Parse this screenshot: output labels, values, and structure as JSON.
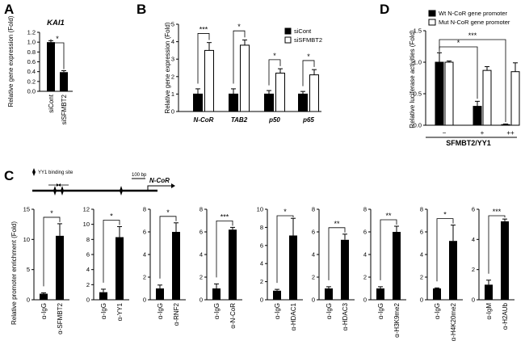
{
  "panels": {
    "A": "A",
    "B": "B",
    "C": "C",
    "D": "D"
  },
  "chart_data": [
    {
      "id": "A",
      "type": "bar",
      "title": "KAI1",
      "ylabel": "Relative gene expression (Fold)",
      "categories": [
        "siCont",
        "siSFMBT2"
      ],
      "values": [
        1.0,
        0.39
      ],
      "errors": [
        0.03,
        0.03
      ],
      "ylim": [
        0,
        1.2
      ],
      "yticks": [
        "0.0",
        "0.2",
        "0.4",
        "0.6",
        "0.8",
        "1.0",
        "1.2"
      ],
      "significance": [
        {
          "between": [
            0,
            1
          ],
          "label": "*"
        }
      ]
    },
    {
      "id": "B",
      "type": "bar",
      "ylabel": "Relative gene expression (Fold)",
      "categories": [
        "N-CoR",
        "TAB2",
        "p50",
        "p65"
      ],
      "series": [
        {
          "name": "siCont",
          "values": [
            1.0,
            1.0,
            1.0,
            1.0
          ],
          "errors": [
            0.3,
            0.3,
            0.2,
            0.15
          ]
        },
        {
          "name": "siSFMBT2",
          "values": [
            3.5,
            3.8,
            2.2,
            2.1
          ],
          "errors": [
            0.45,
            0.3,
            0.25,
            0.3
          ]
        }
      ],
      "ylim": [
        0,
        5
      ],
      "yticks": [
        "0",
        "1",
        "2",
        "3",
        "4",
        "5"
      ],
      "significance": [
        "***",
        "*",
        "*",
        "*"
      ]
    },
    {
      "id": "D",
      "type": "bar",
      "ylabel": "Relative luciferase activities (Fold)",
      "xlabel": "SFMBT2/YY1",
      "categories": [
        "−",
        "+",
        "++"
      ],
      "series": [
        {
          "name": "Wt  N-CoR gene promoter",
          "values": [
            1.0,
            0.3,
            0.01
          ],
          "errors": [
            0.15,
            0.08,
            0.01
          ]
        },
        {
          "name": "Mut N-CoR gene promoter",
          "values": [
            1.0,
            0.87,
            0.85
          ],
          "errors": [
            0.02,
            0.06,
            0.14
          ]
        }
      ],
      "ylim": [
        0,
        1.5
      ],
      "yticks": [
        "0.0",
        "0.5",
        "1.0",
        "1.5"
      ],
      "significance": [
        {
          "between": [
            0,
            1
          ],
          "label": "*"
        },
        {
          "between": [
            0,
            2
          ],
          "label": "***"
        }
      ]
    },
    {
      "id": "C",
      "type": "bar",
      "ylabel": "Relative promoter enrichment (Fold)",
      "subplots": [
        {
          "categories": [
            "α-IgG",
            "α-SFMBT2"
          ],
          "values": [
            1.0,
            10.6
          ],
          "errors": [
            0.15,
            2.0
          ],
          "ylim": [
            0,
            15
          ],
          "yticks": [
            "0",
            "5",
            "10",
            "15"
          ],
          "sig": "*"
        },
        {
          "categories": [
            "α-IgG",
            "α-YY1"
          ],
          "values": [
            1.0,
            8.3
          ],
          "errors": [
            0.4,
            1.4
          ],
          "ylim": [
            0,
            12
          ],
          "yticks": [
            "0",
            "2",
            "4",
            "6",
            "8",
            "10",
            "12"
          ],
          "sig": "*"
        },
        {
          "categories": [
            "α-IgG",
            "α-RNF2"
          ],
          "values": [
            1.0,
            6.0
          ],
          "errors": [
            0.3,
            0.8
          ],
          "ylim": [
            0,
            8
          ],
          "yticks": [
            "0",
            "2",
            "4",
            "6",
            "8"
          ],
          "sig": "*"
        },
        {
          "categories": [
            "α-IgG",
            "α-N-CoR"
          ],
          "values": [
            1.0,
            6.2
          ],
          "errors": [
            0.4,
            0.2
          ],
          "ylim": [
            0,
            8
          ],
          "yticks": [
            "0",
            "2",
            "4",
            "6",
            "8"
          ],
          "sig": "***"
        },
        {
          "categories": [
            "α-IgG",
            "α-HDAC1"
          ],
          "values": [
            1.0,
            7.1
          ],
          "errors": [
            0.15,
            1.9
          ],
          "ylim": [
            0,
            10
          ],
          "yticks": [
            "0",
            "2",
            "4",
            "6",
            "8",
            "10"
          ],
          "sig": "*"
        },
        {
          "categories": [
            "α-IgG",
            "α-HDAC3"
          ],
          "values": [
            1.0,
            5.3
          ],
          "errors": [
            0.15,
            0.5
          ],
          "ylim": [
            0,
            8
          ],
          "yticks": [
            "0",
            "2",
            "4",
            "6",
            "8"
          ],
          "sig": "**"
        },
        {
          "categories": [
            "α-IgG",
            "α-H3K9me2"
          ],
          "values": [
            1.0,
            6.0
          ],
          "errors": [
            0.15,
            0.5
          ],
          "ylim": [
            0,
            8
          ],
          "yticks": [
            "0",
            "2",
            "4",
            "6",
            "8"
          ],
          "sig": "**"
        },
        {
          "categories": [
            "α-IgG",
            "α-H4K20me2"
          ],
          "values": [
            1.0,
            5.2
          ],
          "errors": [
            0.05,
            1.4
          ],
          "ylim": [
            0,
            8
          ],
          "yticks": [
            "0",
            "2",
            "4",
            "6",
            "8"
          ],
          "sig": "*"
        },
        {
          "categories": [
            "α-IgM",
            "α-H2AUb"
          ],
          "values": [
            1.0,
            5.2
          ],
          "errors": [
            0.3,
            0.15
          ],
          "ylim": [
            0,
            6
          ],
          "yticks": [
            "0",
            "2",
            "4",
            "6"
          ],
          "sig": "***"
        }
      ]
    }
  ],
  "diagram": {
    "binding_site_label": "YY1 binding site",
    "scale_label": "100 bp",
    "gene_label": "N-CoR"
  }
}
